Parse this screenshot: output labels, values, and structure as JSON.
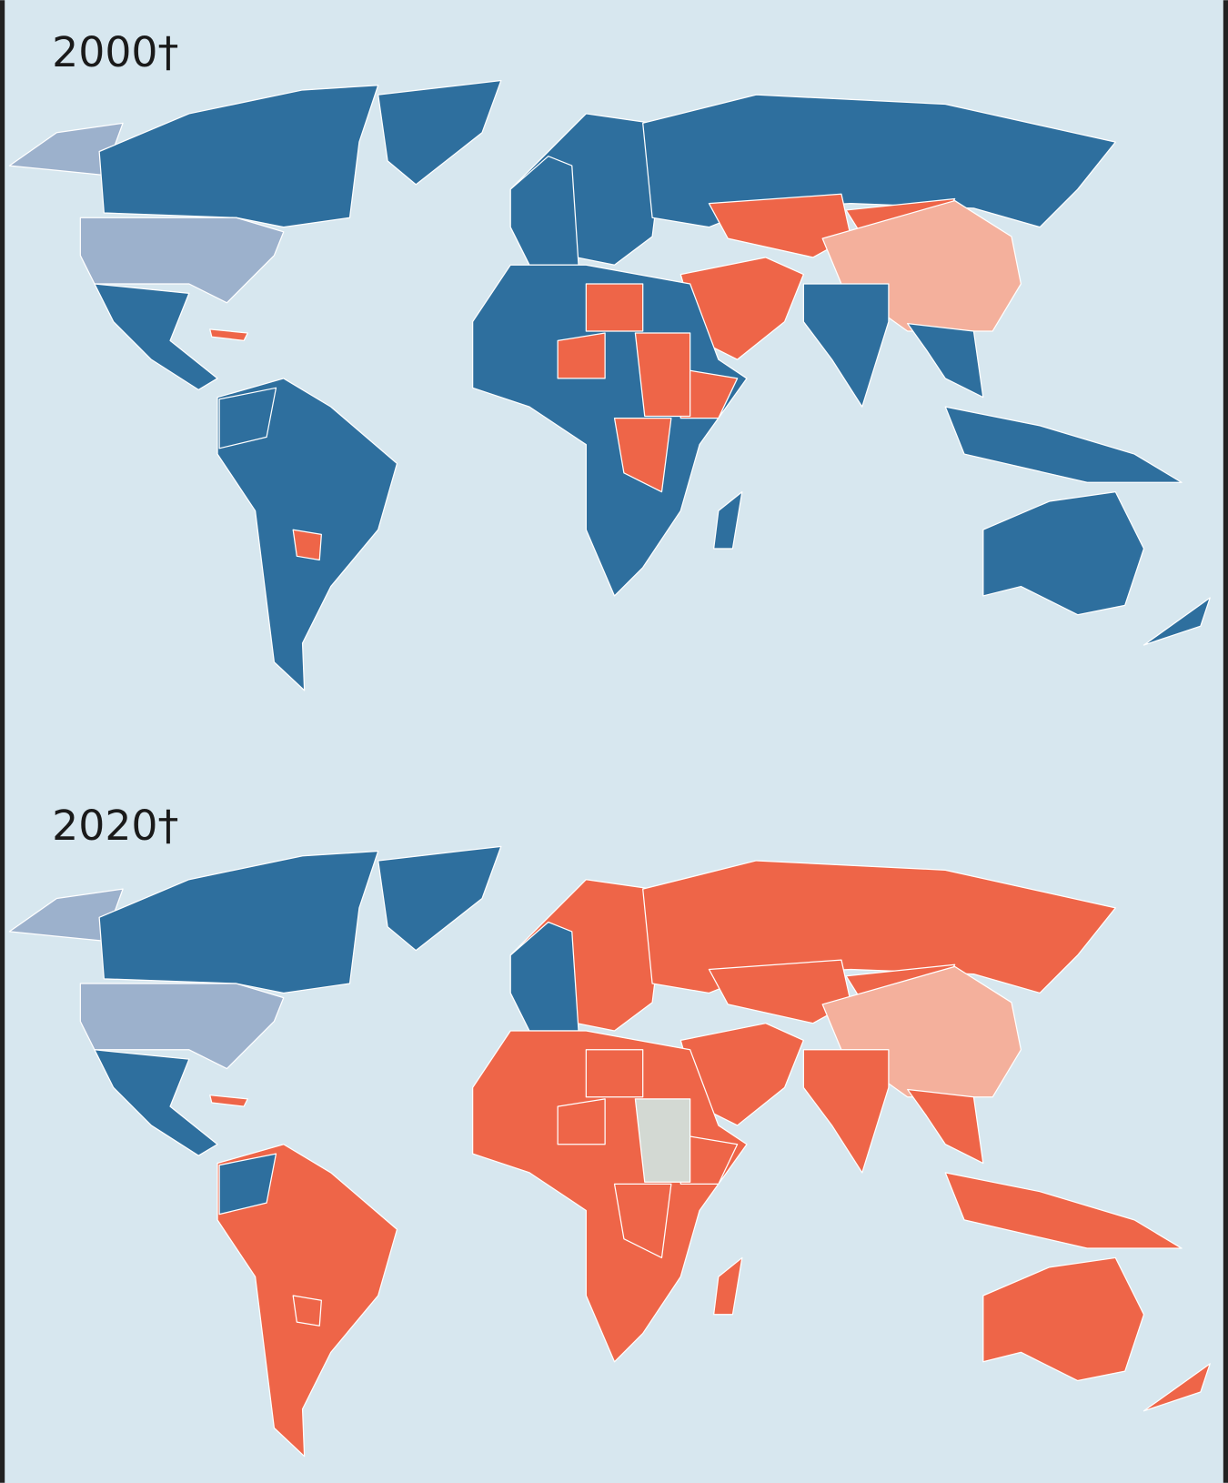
{
  "maps": [
    {
      "title": "2000†"
    },
    {
      "title": "2020†"
    }
  ]
}
